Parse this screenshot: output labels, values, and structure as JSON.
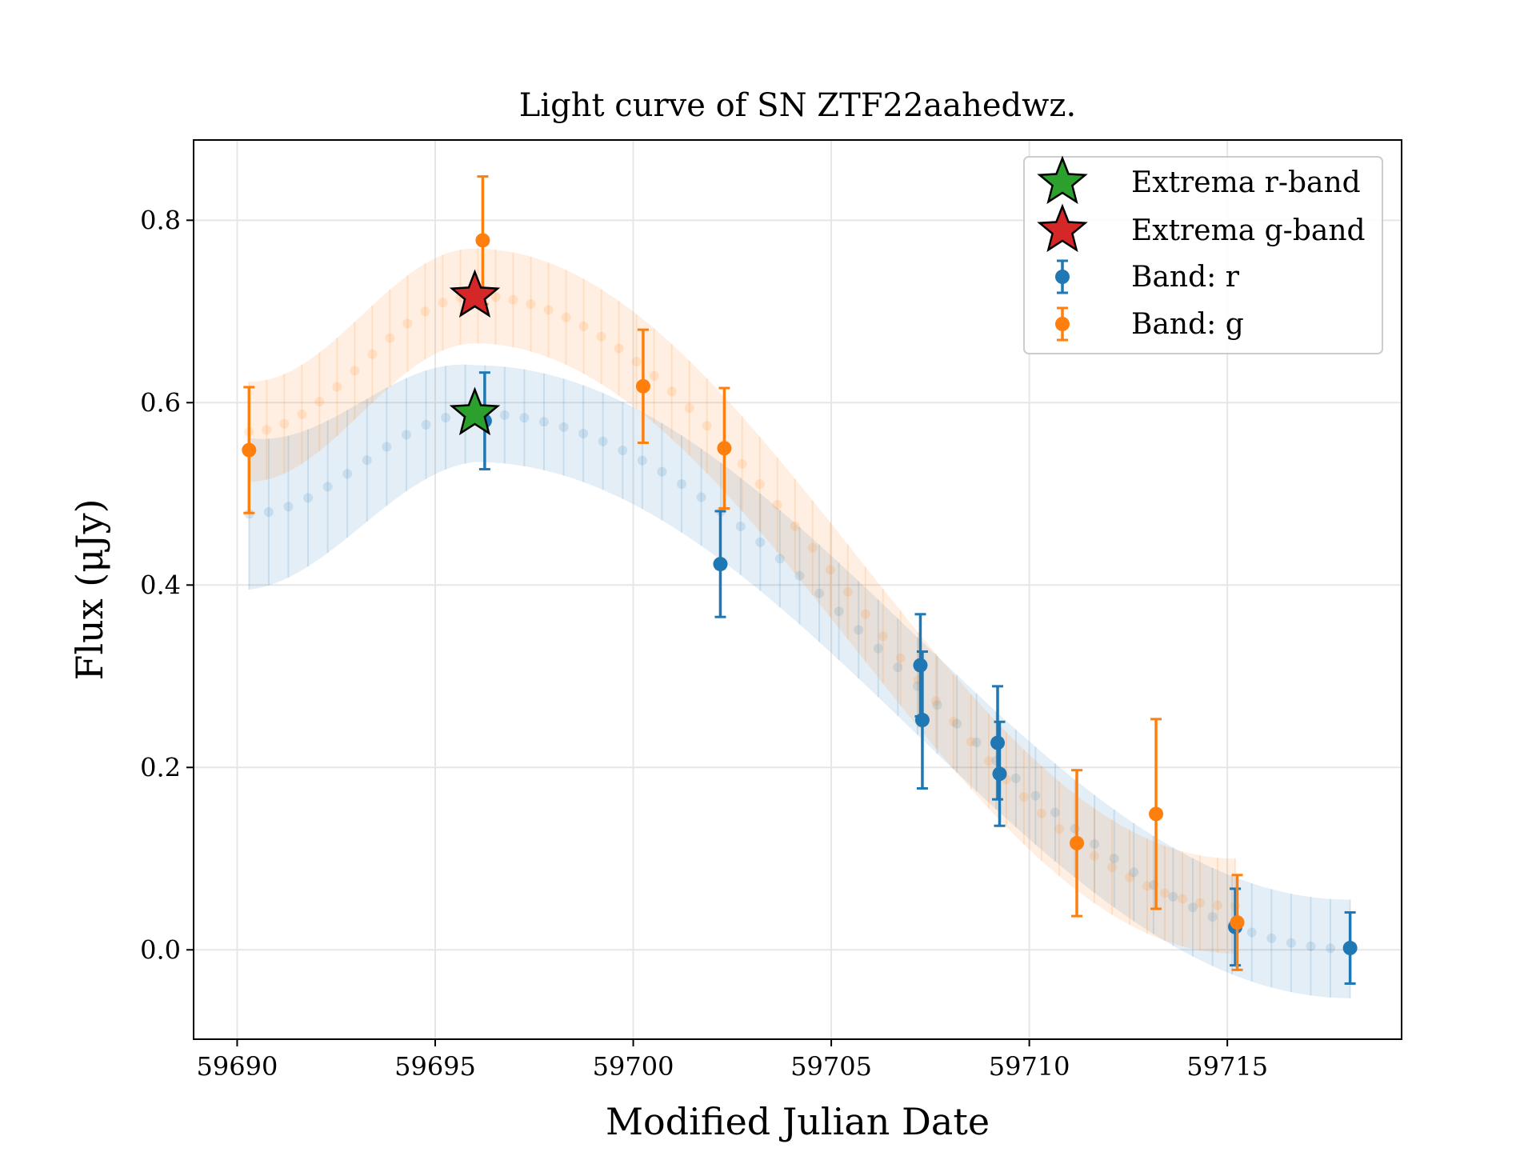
{
  "chart_data": {
    "type": "scatter",
    "title": "Light curve of SN ZTF22aahedwz.",
    "xlabel": "Modified Julian Date",
    "ylabel": "Flux (μJy)",
    "xlim": [
      59688.9,
      59719.4
    ],
    "ylim": [
      -0.098,
      0.888
    ],
    "xticks": [
      59690,
      59695,
      59700,
      59705,
      59710,
      59715
    ],
    "xtick_labels": [
      "59690",
      "59695",
      "59700",
      "59705",
      "59710",
      "59715"
    ],
    "yticks": [
      0.0,
      0.2,
      0.4,
      0.6,
      0.8
    ],
    "ytick_labels": [
      "0.0",
      "0.2",
      "0.4",
      "0.6",
      "0.8"
    ],
    "grid": true,
    "legend_position": "top-right",
    "legend": [
      {
        "label": "Extrema r-band",
        "marker": "star",
        "color": "#2ca02c"
      },
      {
        "label": "Extrema g-band",
        "marker": "star",
        "color": "#d62728"
      },
      {
        "label": "Band: r",
        "marker": "errorbar",
        "color": "#1f77b4"
      },
      {
        "label": "Band: g",
        "marker": "errorbar",
        "color": "#ff7f0e"
      }
    ],
    "series": [
      {
        "name": "Band: r",
        "color": "#1f77b4",
        "points": [
          {
            "x": 59696.25,
            "y": 0.58,
            "err": 0.053
          },
          {
            "x": 59702.2,
            "y": 0.423,
            "err": 0.058
          },
          {
            "x": 59707.25,
            "y": 0.312,
            "err": 0.056
          },
          {
            "x": 59707.3,
            "y": 0.252,
            "err": 0.075
          },
          {
            "x": 59709.2,
            "y": 0.227,
            "err": 0.062
          },
          {
            "x": 59709.25,
            "y": 0.193,
            "err": 0.057
          },
          {
            "x": 59715.2,
            "y": 0.025,
            "err": 0.042
          },
          {
            "x": 59718.1,
            "y": 0.002,
            "err": 0.039
          }
        ]
      },
      {
        "name": "Band: g",
        "color": "#ff7f0e",
        "points": [
          {
            "x": 59690.3,
            "y": 0.548,
            "err": 0.069
          },
          {
            "x": 59696.2,
            "y": 0.778,
            "err": 0.07
          },
          {
            "x": 59700.25,
            "y": 0.618,
            "err": 0.062
          },
          {
            "x": 59702.3,
            "y": 0.55,
            "err": 0.066
          },
          {
            "x": 59711.2,
            "y": 0.117,
            "err": 0.08
          },
          {
            "x": 59713.2,
            "y": 0.149,
            "err": 0.104
          },
          {
            "x": 59715.25,
            "y": 0.03,
            "err": 0.052
          }
        ]
      }
    ],
    "models": [
      {
        "band": "r",
        "color": "#1f77b4",
        "x_start": 59690.3,
        "x_end": 59718.1,
        "peak_x": 59696.0,
        "peak_y": 0.588,
        "start_y": 0.478,
        "end_y": 0.001,
        "band_halfwidth_start": 0.083,
        "band_halfwidth_peak": 0.053,
        "band_halfwidth_end": 0.054
      },
      {
        "band": "g",
        "color": "#ff7f0e",
        "x_start": 59690.3,
        "x_end": 59715.2,
        "peak_x": 59696.0,
        "peak_y": 0.717,
        "start_y": 0.568,
        "end_y": 0.048,
        "band_halfwidth_start": 0.055,
        "band_halfwidth_peak": 0.052,
        "band_halfwidth_end": 0.052
      }
    ],
    "extrema": [
      {
        "band": "r",
        "x": 59696.0,
        "y": 0.588,
        "color": "#2ca02c"
      },
      {
        "band": "g",
        "x": 59696.0,
        "y": 0.717,
        "color": "#d62728"
      }
    ]
  }
}
